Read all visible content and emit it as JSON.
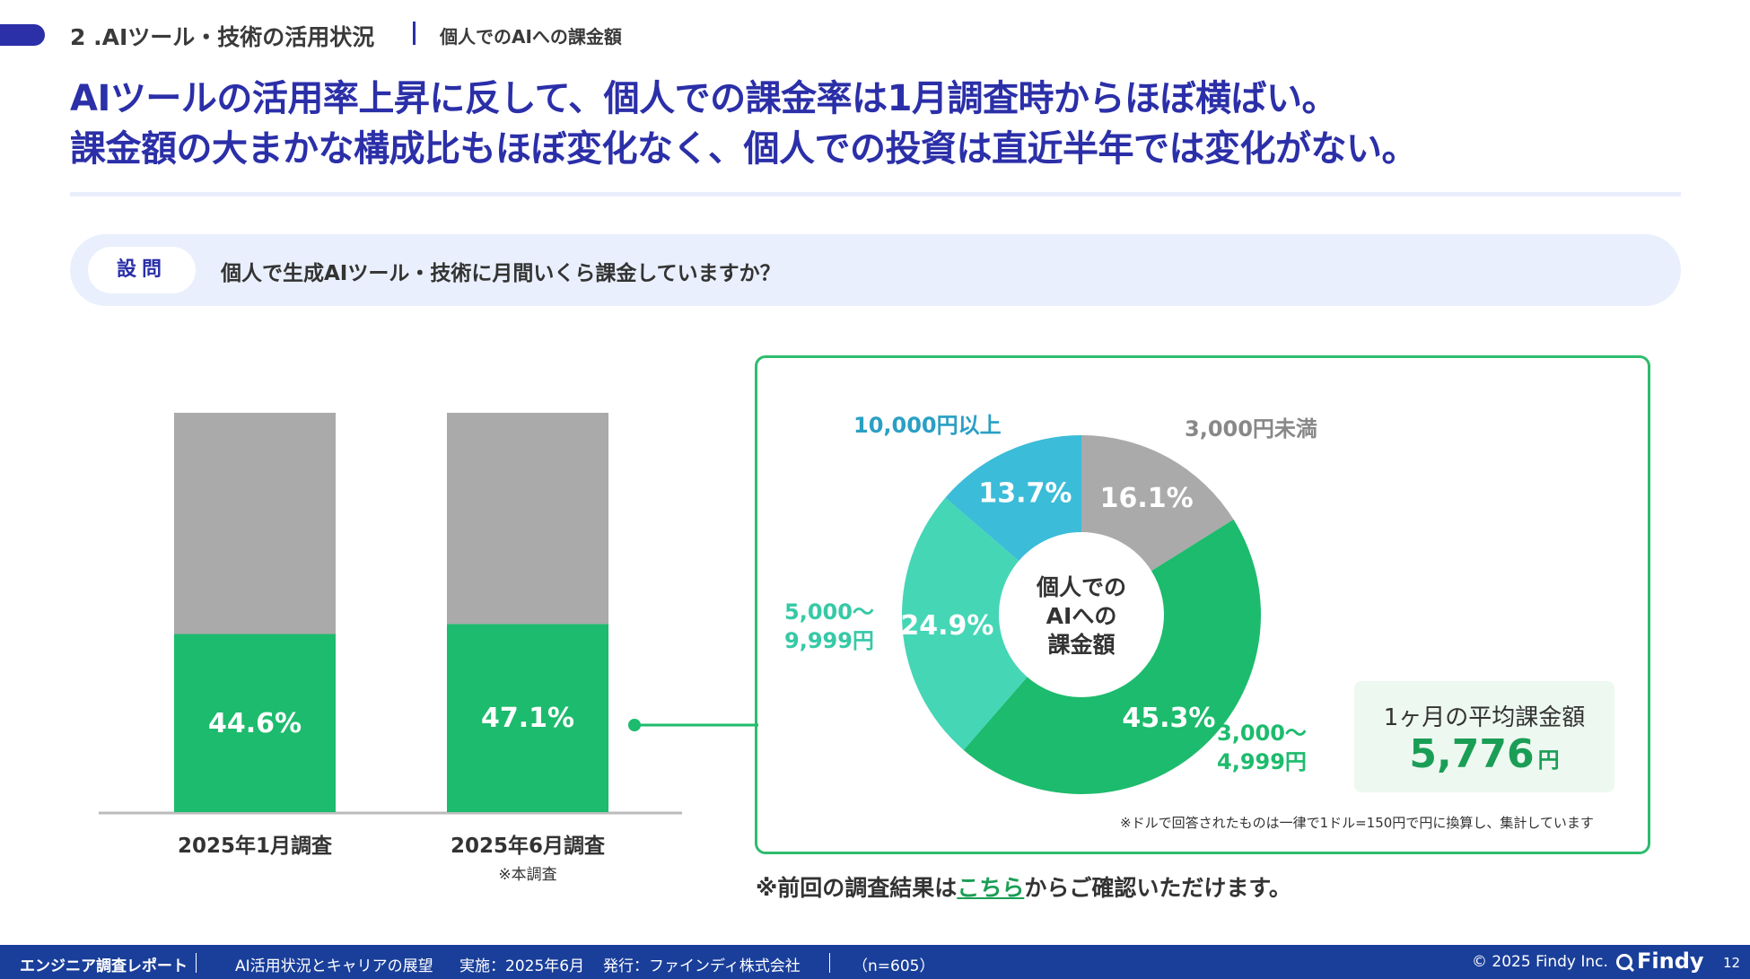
{
  "header": {
    "section_title": "2 .AIツール・技術の活用状況",
    "section_sub": "個人でのAIへの課金額"
  },
  "headline": {
    "line1": "AIツールの活用率上昇に反して、個人での課金率は1月調査時からほぼ横ばい。",
    "line2": "課金額の大まかな構成比もほぼ変化なく、個人での投資は直近半年では変化がない。"
  },
  "question": {
    "tag": "設問",
    "text": "個人で生成AIツール・技術に月間いくら課金していますか？"
  },
  "colors": {
    "accent": "#2b2fa8",
    "green": "#1dbb6d",
    "gray": "#aaaaaa",
    "teal": "#45d6b6",
    "sky": "#3bbcd9",
    "footer": "#1a3f9a"
  },
  "chart_data": [
    {
      "type": "bar",
      "stacked": true,
      "categories": [
        "2025年1月調査",
        "2025年6月調査"
      ],
      "category_notes": [
        "",
        "※本調査"
      ],
      "series": [
        {
          "values": [
            44.6,
            47.1
          ],
          "color": "#1dbb6d"
        },
        {
          "values": [
            55.4,
            52.9
          ],
          "color": "#aaaaaa"
        }
      ],
      "data_labels": [
        "44.6%",
        "47.1%"
      ],
      "ylim": [
        0,
        100
      ]
    },
    {
      "type": "pie",
      "donut": true,
      "center_label": [
        "個人での",
        "AIへの",
        "課金額"
      ],
      "slices": [
        {
          "label": "3,000円未満",
          "value": 16.1,
          "display": "16.1%",
          "color": "#aaaaaa"
        },
        {
          "label": "3,000〜4,999円",
          "value": 45.3,
          "display": "45.3%",
          "color": "#1dbb6d"
        },
        {
          "label": "5,000〜9,999円",
          "value": 24.9,
          "display": "24.9%",
          "color": "#45d6b6"
        },
        {
          "label": "10,000円以上",
          "value": 13.7,
          "display": "13.7%",
          "color": "#3bbcd9"
        }
      ]
    }
  ],
  "outer_labels": {
    "over10000": "10,000円以上",
    "under3000": "3,000円未満",
    "r5000_line1": "5,000〜",
    "r5000_line2": "9,999円",
    "r3000_line1": "3,000〜",
    "r3000_line2": "4,999円"
  },
  "average": {
    "title": "1ヶ月の平均課金額",
    "value": "5,776",
    "unit": "円"
  },
  "notes": {
    "conversion": "※ドルで回答されたものは一律で1ドル=150円で円に換算し、集計しています",
    "prev_before": "※前回の調査結果は",
    "prev_link": "こちら",
    "prev_after": "からご確認いただけます。"
  },
  "footer": {
    "report": "エンジニア調査レポート",
    "theme": "AI活用状況とキャリアの展望",
    "date": "実施：2025年6月",
    "publisher": "発行：ファインディ株式会社",
    "n": "（n=605）",
    "copyright": "© 2025 Findy Inc.",
    "brand": "Findy",
    "page": "12"
  }
}
